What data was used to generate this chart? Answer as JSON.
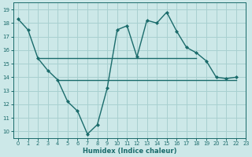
{
  "line1_x": [
    0,
    1,
    2,
    3,
    4,
    5,
    6,
    7,
    8,
    9,
    10,
    11,
    12,
    13,
    14,
    15,
    16,
    17,
    18,
    19,
    20,
    21,
    22
  ],
  "line1_y": [
    18.3,
    17.5,
    15.4,
    14.5,
    13.8,
    12.2,
    11.5,
    9.8,
    10.5,
    13.2,
    17.5,
    17.8,
    15.5,
    18.2,
    18.0,
    18.8,
    17.4,
    16.2,
    15.8,
    15.2,
    14.0,
    13.9,
    14.0
  ],
  "hline1_x": [
    2,
    18
  ],
  "hline1_y": [
    15.4,
    15.4
  ],
  "hline2_x": [
    4,
    22
  ],
  "hline2_y": [
    13.8,
    13.8
  ],
  "line_color": "#1a6b6b",
  "bg_color": "#cce8e8",
  "grid_color": "#a8d0d0",
  "xlabel": "Humidex (Indice chaleur)",
  "xlim": [
    -0.5,
    23
  ],
  "ylim": [
    9.5,
    19.5
  ],
  "yticks": [
    10,
    11,
    12,
    13,
    14,
    15,
    16,
    17,
    18,
    19
  ],
  "xticks": [
    0,
    1,
    2,
    3,
    4,
    5,
    6,
    7,
    8,
    9,
    10,
    11,
    12,
    13,
    14,
    15,
    16,
    17,
    18,
    19,
    20,
    21,
    22,
    23
  ]
}
